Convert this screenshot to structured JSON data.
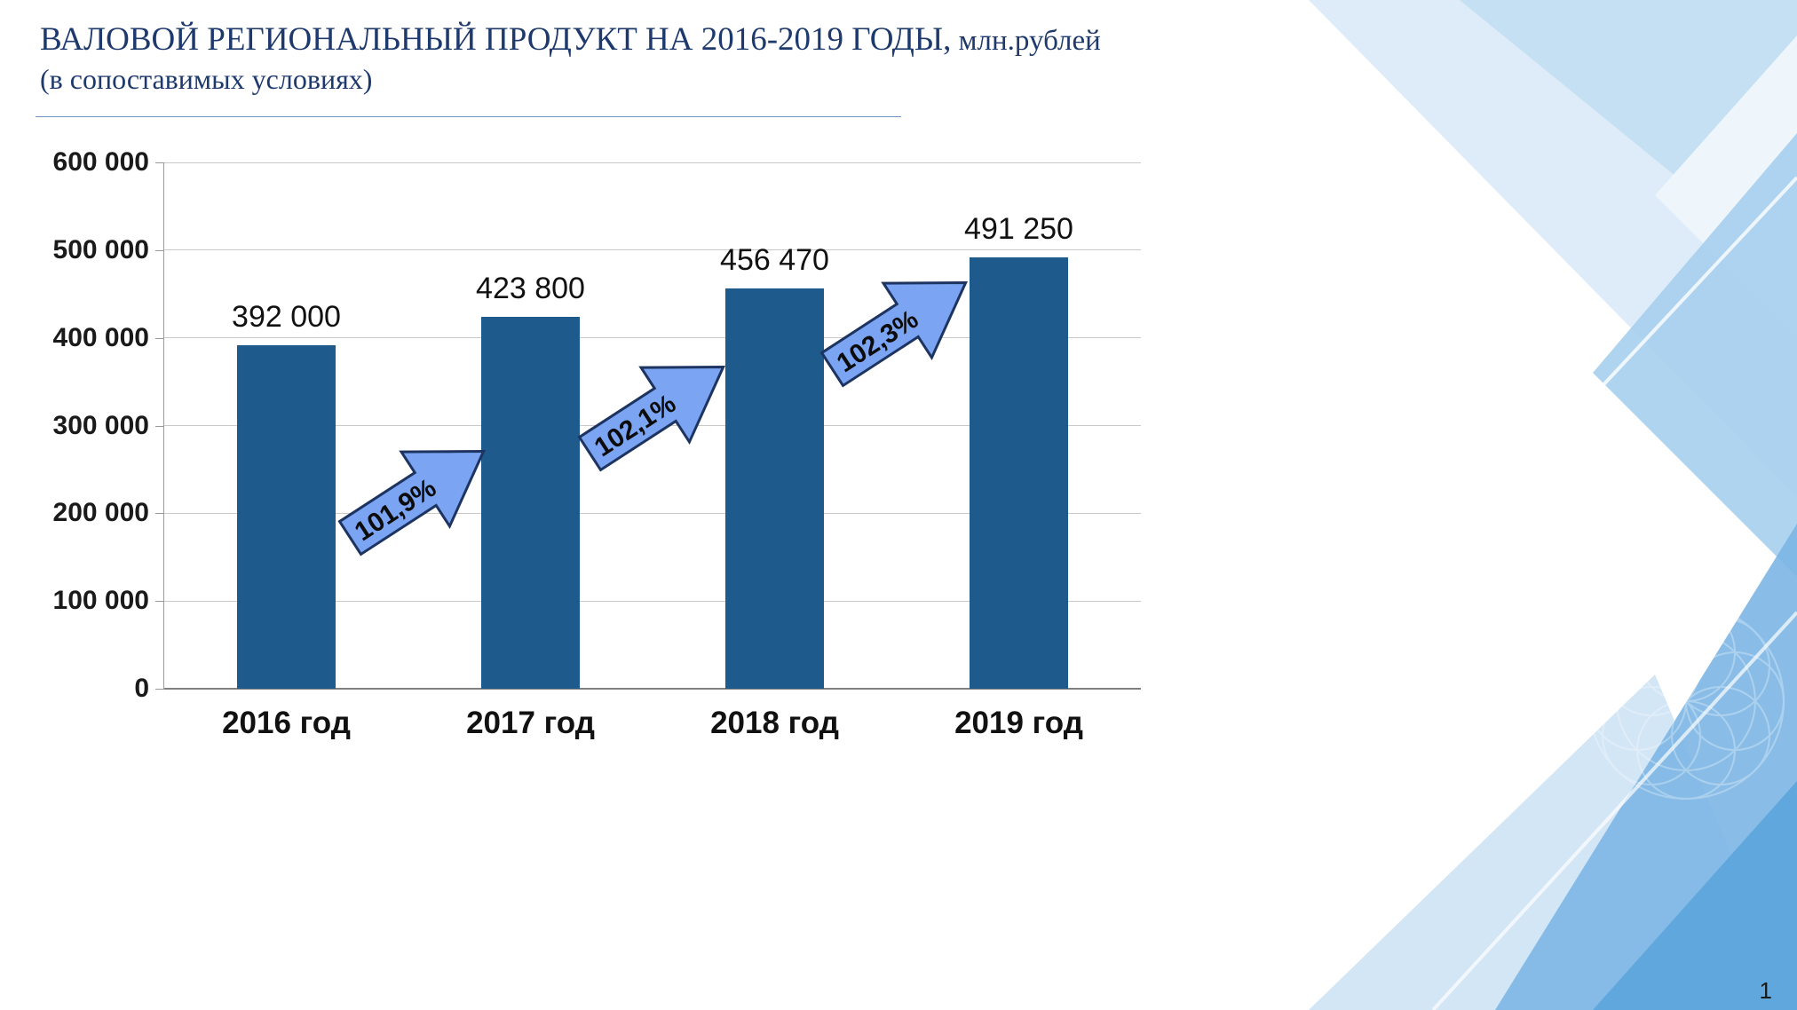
{
  "slide": {
    "title_main": "ВАЛОВОЙ РЕГИОНАЛЬНЫЙ ПРОДУКТ НА 2016-2019 ГОДЫ,",
    "title_unit": " млн.рублей",
    "title_sub": "(в сопоставимых условиях)",
    "page_number": "1"
  },
  "colors": {
    "title": "#1e3a6d",
    "bar": "#1e5a8c",
    "arrow_fill": "#7ba4f2",
    "arrow_stroke": "#1d3461",
    "gridline": "#c9c9c9",
    "axis": "#7f7f7f",
    "decoration_blues": [
      "#ddecf8",
      "#c5dff3",
      "#a6cfee",
      "#7cb6e4",
      "#58a3d9"
    ]
  },
  "chart_data": {
    "type": "bar",
    "title": "ВАЛОВОЙ РЕГИОНАЛЬНЫЙ ПРОДУКТ НА 2016-2019 ГОДЫ, млн.рублей (в сопоставимых условиях)",
    "categories": [
      "2016 год",
      "2017 год",
      "2018 год",
      "2019 год"
    ],
    "values": [
      392000,
      423800,
      456470,
      491250
    ],
    "value_labels": [
      "392 000",
      "423 800",
      "456 470",
      "491 250"
    ],
    "growth_labels": [
      "101,9%",
      "102,1%",
      "102,3%"
    ],
    "ylim": [
      0,
      600000
    ],
    "ytick_step": 100000,
    "ytick_labels": [
      "0",
      "100 000",
      "200 000",
      "300 000",
      "400 000",
      "500 000",
      "600 000"
    ],
    "grid": true,
    "legend": "none",
    "bar_color": "#1e5a8c",
    "arrow_fill": "#7ba4f2",
    "arrow_stroke": "#1d3461"
  }
}
